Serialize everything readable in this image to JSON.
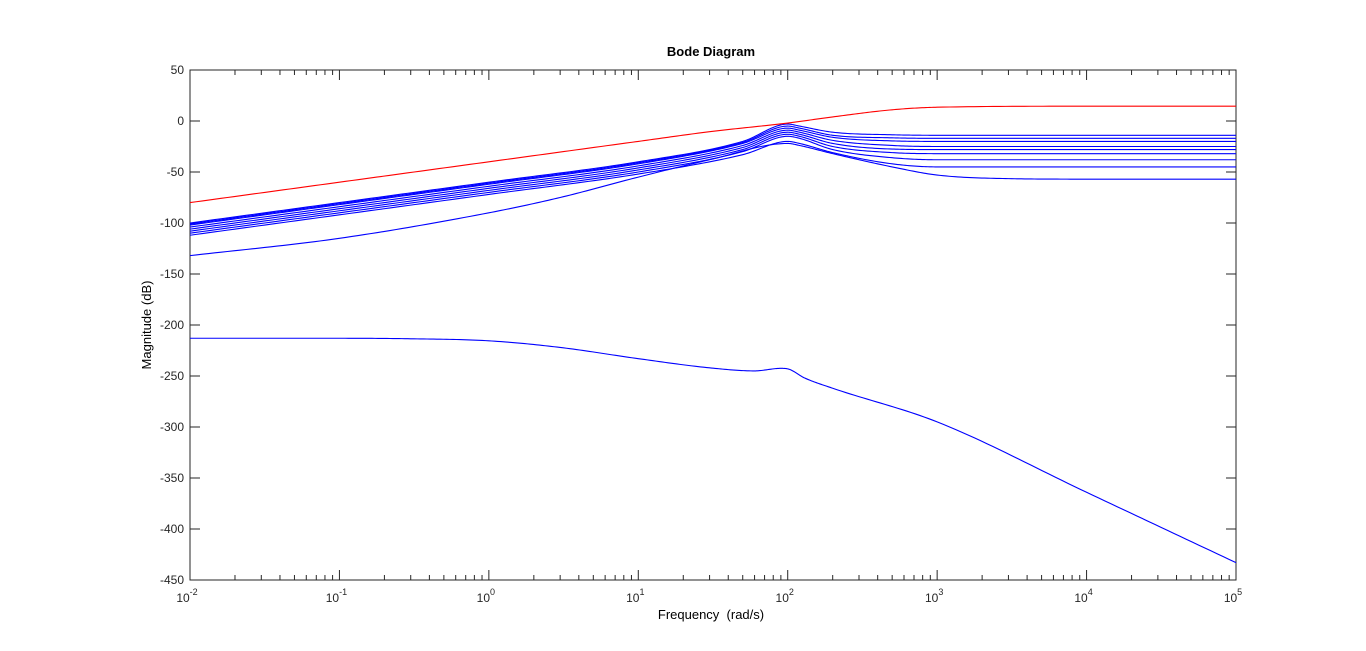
{
  "chart_data": {
    "type": "line",
    "title": "Bode Diagram",
    "xlabel": "Frequency  (rad/s)",
    "ylabel": "Magnitude (dB)",
    "xscale": "log",
    "xlim": [
      0.01,
      100000
    ],
    "ylim": [
      -450,
      50
    ],
    "grid": false,
    "x_ticks": [
      {
        "base": "10",
        "exp": "-2",
        "value": 0.01
      },
      {
        "base": "10",
        "exp": "-1",
        "value": 0.1
      },
      {
        "base": "10",
        "exp": "0",
        "value": 1
      },
      {
        "base": "10",
        "exp": "1",
        "value": 10
      },
      {
        "base": "10",
        "exp": "2",
        "value": 100
      },
      {
        "base": "10",
        "exp": "3",
        "value": 1000
      },
      {
        "base": "10",
        "exp": "4",
        "value": 10000
      },
      {
        "base": "10",
        "exp": "5",
        "value": 100000
      }
    ],
    "y_ticks": [
      "50",
      "0",
      "-50",
      "-100",
      "-150",
      "-200",
      "-250",
      "-300",
      "-350",
      "-400",
      "-450"
    ],
    "colors": {
      "highlight": "#ff0000",
      "family": "#0000ff",
      "axes": "#262626"
    },
    "series": [
      {
        "color": "#ff0000",
        "x": [
          0.01,
          0.1,
          1,
          10,
          30,
          100,
          200,
          500,
          1000,
          10000,
          100000
        ],
        "y": [
          -80,
          -60,
          -40,
          -20,
          -10.5,
          -2,
          4,
          11,
          13.5,
          14.5,
          14.5
        ]
      },
      {
        "color": "#0000ff",
        "x": [
          0.01,
          0.1,
          1,
          10,
          50,
          100,
          120,
          200,
          500,
          1000,
          100000
        ],
        "y": [
          -100,
          -80,
          -60,
          -40,
          -20,
          -3,
          -5,
          -11,
          -13.5,
          -14,
          -14
        ]
      },
      {
        "color": "#0000ff",
        "x": [
          0.01,
          0.1,
          1,
          10,
          50,
          100,
          120,
          200,
          500,
          1000,
          100000
        ],
        "y": [
          -101,
          -81,
          -61,
          -41,
          -21,
          -5,
          -7,
          -14,
          -16.5,
          -17,
          -17
        ]
      },
      {
        "color": "#0000ff",
        "x": [
          0.01,
          0.1,
          1,
          10,
          50,
          100,
          120,
          200,
          500,
          1000,
          100000
        ],
        "y": [
          -102,
          -82,
          -62,
          -42,
          -22,
          -7,
          -9,
          -16,
          -19.5,
          -20,
          -20
        ]
      },
      {
        "color": "#0000ff",
        "x": [
          0.01,
          0.1,
          1,
          10,
          50,
          100,
          120,
          200,
          500,
          1000,
          100000
        ],
        "y": [
          -104,
          -84,
          -64,
          -44,
          -24,
          -9,
          -11,
          -19,
          -24,
          -25,
          -25
        ]
      },
      {
        "color": "#0000ff",
        "x": [
          0.01,
          0.1,
          1,
          10,
          50,
          100,
          120,
          200,
          500,
          1000,
          100000
        ],
        "y": [
          -106,
          -86,
          -66,
          -46,
          -26,
          -11,
          -13,
          -22,
          -27.5,
          -28,
          -28
        ]
      },
      {
        "color": "#0000ff",
        "x": [
          0.01,
          0.1,
          1,
          10,
          50,
          100,
          120,
          200,
          500,
          1000,
          100000
        ],
        "y": [
          -108,
          -88,
          -68,
          -48,
          -28,
          -13,
          -15,
          -25,
          -31,
          -32,
          -32
        ]
      },
      {
        "color": "#0000ff",
        "x": [
          0.01,
          0.1,
          1,
          10,
          50,
          100,
          120,
          200,
          500,
          1000,
          100000
        ],
        "y": [
          -110,
          -90,
          -70,
          -50,
          -30,
          -15,
          -17,
          -28,
          -36,
          -38,
          -38
        ]
      },
      {
        "color": "#0000ff",
        "x": [
          0.01,
          0.1,
          1,
          10,
          50,
          100,
          120,
          200,
          500,
          1000,
          100000
        ],
        "y": [
          -112,
          -92,
          -72,
          -52,
          -33,
          -20,
          -22,
          -31,
          -42,
          -45,
          -45
        ]
      },
      {
        "color": "#0000ff",
        "x": [
          0.01,
          0.1,
          1,
          3,
          10,
          30,
          100,
          120,
          200,
          500,
          1000,
          3000,
          10000,
          100000
        ],
        "y": [
          -132,
          -115,
          -90,
          -75,
          -55,
          -38,
          -22,
          -24,
          -32,
          -45,
          -53,
          -56.5,
          -57,
          -57
        ]
      },
      {
        "color": "#0000ff",
        "x": [
          0.01,
          0.1,
          0.3,
          1,
          3,
          10,
          30,
          60,
          90,
          100,
          130,
          200,
          1000,
          10000,
          100000
        ],
        "y": [
          -213,
          -213,
          -213.5,
          -215.5,
          -222,
          -233,
          -242,
          -245,
          -242.5,
          -243,
          -252,
          -262,
          -295,
          -364,
          -433
        ]
      }
    ]
  }
}
